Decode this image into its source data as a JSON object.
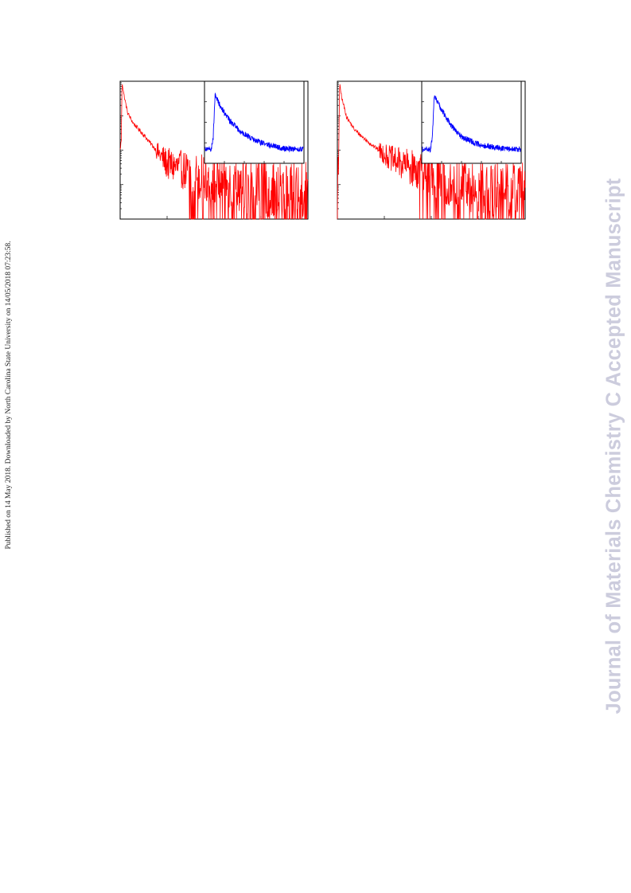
{
  "side_note": "Published on 14 May 2018. Downloaded by North Carolina State University on 14/05/2018 07:23:58.",
  "watermark": {
    "text": "Journal of Materials Chemistry C Accepted Manuscript",
    "color": "#ccccdd"
  },
  "colors": {
    "decay": "#ff0000",
    "inset": "#0000ff",
    "axis": "#000000"
  },
  "chart_data": [
    {
      "type": "line",
      "title": "",
      "xlabel": "",
      "ylabel": "",
      "yscale": "log",
      "xlim": [
        0,
        1
      ],
      "ylim": [
        0.0001,
        1
      ],
      "grid": false,
      "tick_labels_visible": false,
      "series": [
        {
          "values": [
            [
              0.0,
              0.01
            ],
            [
              0.006,
              0.02
            ],
            [
              0.01,
              1.0
            ],
            [
              0.02,
              0.4
            ],
            [
              0.04,
              0.12
            ],
            [
              0.07,
              0.06
            ],
            [
              0.12,
              0.03
            ],
            [
              0.18,
              0.012
            ],
            [
              0.25,
              0.004
            ],
            [
              0.35,
              0.0025
            ],
            [
              0.45,
              0.0015
            ],
            [
              0.55,
              0.0012
            ],
            [
              0.7,
              0.0009
            ],
            [
              0.85,
              0.0007
            ],
            [
              1.0,
              0.0006
            ]
          ]
        }
      ],
      "inset": {
        "type": "line",
        "yscale": "linear",
        "xlim": [
          0,
          1
        ],
        "ylim": [
          0,
          1
        ],
        "series": [
          {
            "values": [
              [
                0.0,
                0.17
              ],
              [
                0.06,
                0.17
              ],
              [
                0.08,
                0.3
              ],
              [
                0.1,
                0.84
              ],
              [
                0.15,
                0.7
              ],
              [
                0.25,
                0.52
              ],
              [
                0.35,
                0.4
              ],
              [
                0.5,
                0.28
              ],
              [
                0.65,
                0.22
              ],
              [
                0.8,
                0.18
              ],
              [
                1.0,
                0.17
              ]
            ]
          }
        ]
      }
    },
    {
      "type": "line",
      "title": "",
      "xlabel": "",
      "ylabel": "",
      "yscale": "log",
      "xlim": [
        0,
        1
      ],
      "ylim": [
        0.0001,
        1
      ],
      "grid": false,
      "tick_labels_visible": false,
      "series": [
        {
          "values": [
            [
              0.0,
              0.0005
            ],
            [
              0.006,
              0.003
            ],
            [
              0.012,
              0.8
            ],
            [
              0.025,
              0.3
            ],
            [
              0.05,
              0.09
            ],
            [
              0.09,
              0.04
            ],
            [
              0.15,
              0.02
            ],
            [
              0.22,
              0.01
            ],
            [
              0.3,
              0.005
            ],
            [
              0.4,
              0.003
            ],
            [
              0.5,
              0.0018
            ],
            [
              0.65,
              0.0011
            ],
            [
              0.8,
              0.0008
            ],
            [
              1.0,
              0.0006
            ]
          ]
        }
      ],
      "inset": {
        "type": "line",
        "yscale": "linear",
        "xlim": [
          0,
          1
        ],
        "ylim": [
          0,
          1
        ],
        "series": [
          {
            "values": [
              [
                0.0,
                0.17
              ],
              [
                0.08,
                0.17
              ],
              [
                0.1,
                0.3
              ],
              [
                0.12,
                0.84
              ],
              [
                0.18,
                0.68
              ],
              [
                0.28,
                0.48
              ],
              [
                0.4,
                0.32
              ],
              [
                0.55,
                0.24
              ],
              [
                0.7,
                0.2
              ],
              [
                0.85,
                0.18
              ],
              [
                1.0,
                0.17
              ]
            ]
          }
        ]
      }
    }
  ]
}
